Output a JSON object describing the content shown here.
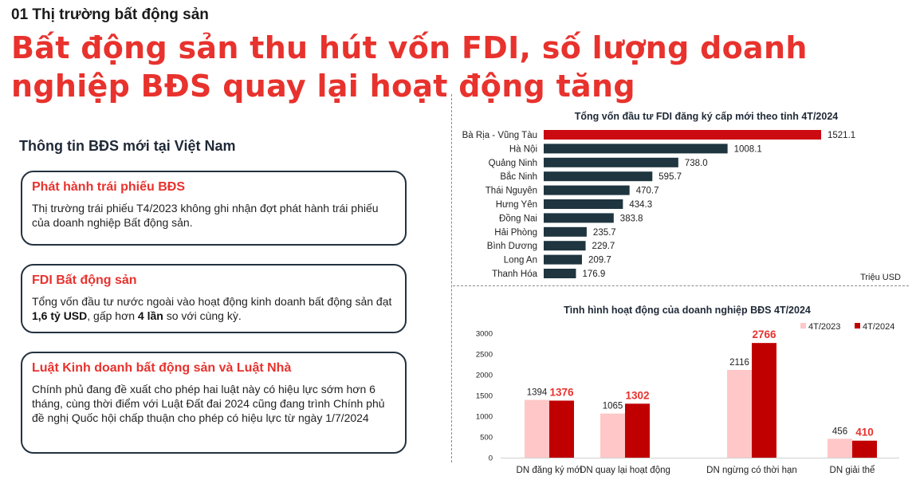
{
  "header": {
    "section_label": "01 Thị trường bất động sản",
    "title": "Bất động sản thu hút vốn FDI, số lượng doanh nghiệp BĐS quay lại hoạt động tăng"
  },
  "left_panel": {
    "heading": "Thông tin BĐS mới tại Việt Nam",
    "cards": [
      {
        "title": "Phát hành trái phiếu BĐS",
        "body": "Thị trường trái phiếu T4/2023 không ghi nhận đợt phát hành trái phiếu của doanh nghiệp Bất động sản."
      },
      {
        "title": "FDI Bất động sản",
        "body_prefix": "Tổng vốn đầu tư nước ngoài vào hoạt động kinh doanh bất động sản đạt ",
        "body_bold_1": "1,6 tỷ USD",
        "body_mid": ", gấp hơn ",
        "body_bold_2": "4 lần",
        "body_suffix": " so với cùng kỳ."
      },
      {
        "title": "Luật Kinh doanh bất động sản và Luật Nhà",
        "body": "Chính phủ đang đề xuất cho phép hai luật này có hiệu lực sớm hơn 6 tháng, cùng thời điểm với Luật Đất đai 2024 cũng đang trình Chính phủ đề nghị Quốc hội chấp thuận cho phép có hiệu lực từ ngày 1/7/2024"
      }
    ]
  },
  "chart_data": [
    {
      "type": "bar",
      "orientation": "horizontal",
      "title": "Tổng vốn đầu tư FDI đăng ký cấp mới theo tỉnh 4T/2024",
      "unit_label": "Triệu USD",
      "categories": [
        "Bà Rịa - Vũng Tàu",
        "Hà Nội",
        "Quảng Ninh",
        "Bắc Ninh",
        "Thái Nguyên",
        "Hưng Yên",
        "Đồng Nai",
        "Hải Phòng",
        "Bình Dương",
        "Long An",
        "Thanh Hóa"
      ],
      "values": [
        1521.1,
        1008.1,
        738.0,
        595.7,
        470.7,
        434.3,
        383.8,
        235.7,
        229.7,
        209.7,
        176.9
      ],
      "value_labels": [
        "1521.1",
        "1008.1",
        "738.0",
        "595.7",
        "470.7",
        "434.3",
        "383.8",
        "235.7",
        "229.7",
        "209.7",
        "176.9"
      ],
      "xlim": [
        0,
        1521.1
      ],
      "colors": {
        "highlight": "#cc0a12",
        "default": "#1f3540"
      }
    },
    {
      "type": "bar",
      "title": "Tình hình hoạt động của doanh nghiệp BĐS 4T/2024",
      "categories": [
        "DN đăng ký mới",
        "DN quay lại hoạt động",
        "DN ngừng có thời hạn",
        "DN giải thể"
      ],
      "series": [
        {
          "name": "4T/2023",
          "values": [
            1394,
            1065,
            2116,
            456
          ],
          "color": "#ffc7c7"
        },
        {
          "name": "4T/2024",
          "values": [
            1376,
            1302,
            2766,
            410
          ],
          "color": "#c00000"
        }
      ],
      "ylim": [
        0,
        3000
      ],
      "yticks": [
        "0",
        "500",
        "1000",
        "1500",
        "2000",
        "2500",
        "3000"
      ],
      "legend": "top-right"
    }
  ]
}
